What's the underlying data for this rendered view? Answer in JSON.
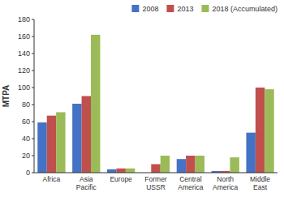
{
  "chart_data": {
    "type": "bar",
    "categories": [
      "Africa",
      "Asia\nPacific",
      "Europe",
      "Former\nUSSR",
      "Central\nAmerica",
      "North\nAmerica",
      "Middle\nEast"
    ],
    "series": [
      {
        "name": "2008",
        "color": "#4472C4",
        "values": [
          59,
          81,
          4,
          0,
          16,
          2,
          47
        ]
      },
      {
        "name": "2013",
        "color": "#C0504D",
        "values": [
          67,
          90,
          5,
          10,
          20,
          2,
          100
        ]
      },
      {
        "name": "2018 (Accumulated)",
        "color": "#9BBB59",
        "values": [
          71,
          162,
          5,
          20,
          20,
          18,
          98
        ]
      }
    ],
    "ylabel": "MTPA",
    "ylim": [
      0,
      180
    ],
    "yticks": [
      0,
      20,
      40,
      60,
      80,
      100,
      120,
      140,
      160,
      180
    ],
    "grid": false,
    "legend": "upper right"
  }
}
